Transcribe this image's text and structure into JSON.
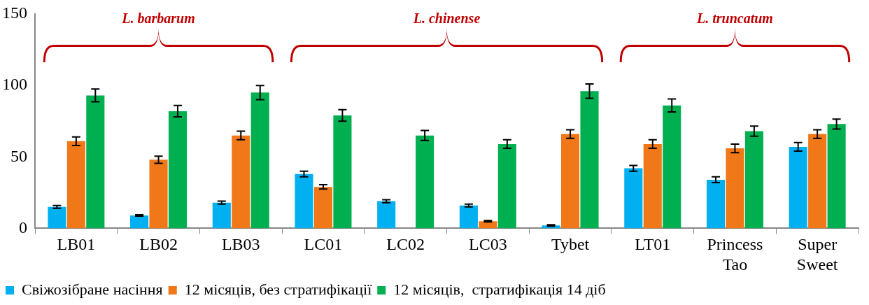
{
  "chart_data": {
    "type": "bar",
    "categories": [
      "LB01",
      "LB02",
      "LB03",
      "LC01",
      "LC02",
      "LC03",
      "Tybet",
      "LT01",
      "Princess Tao",
      "Super Sweet"
    ],
    "series": [
      {
        "name": "Свіжозібране насіння",
        "color": "#00b0f0",
        "values": [
          15,
          9,
          18,
          38,
          19,
          16,
          2,
          42,
          34,
          57
        ],
        "errors": [
          1,
          0.5,
          1,
          2,
          1,
          1,
          0.5,
          2,
          2,
          3
        ]
      },
      {
        "name": "12 місяців, без стратифікації",
        "color": "#f07818",
        "values": [
          61,
          48,
          65,
          29,
          null,
          5,
          66,
          59,
          56,
          66
        ],
        "errors": [
          3,
          2.5,
          3,
          1.5,
          null,
          0.5,
          3,
          3,
          3,
          3
        ]
      },
      {
        "name": "12 місяців,  стратифікація 14 діб",
        "color": "#00b050",
        "values": [
          93,
          82,
          95,
          79,
          65,
          59,
          96,
          86,
          68,
          73
        ],
        "errors": [
          4.5,
          4,
          5,
          4,
          3.5,
          3,
          5,
          4.5,
          3.5,
          3.5
        ]
      }
    ],
    "ylim": [
      0,
      150
    ],
    "yticks": [
      0,
      50,
      100,
      150
    ],
    "grid": false,
    "legend": "bottom",
    "annotations": [
      "L. barbarum",
      "L. chinense",
      "L. truncatum"
    ]
  }
}
